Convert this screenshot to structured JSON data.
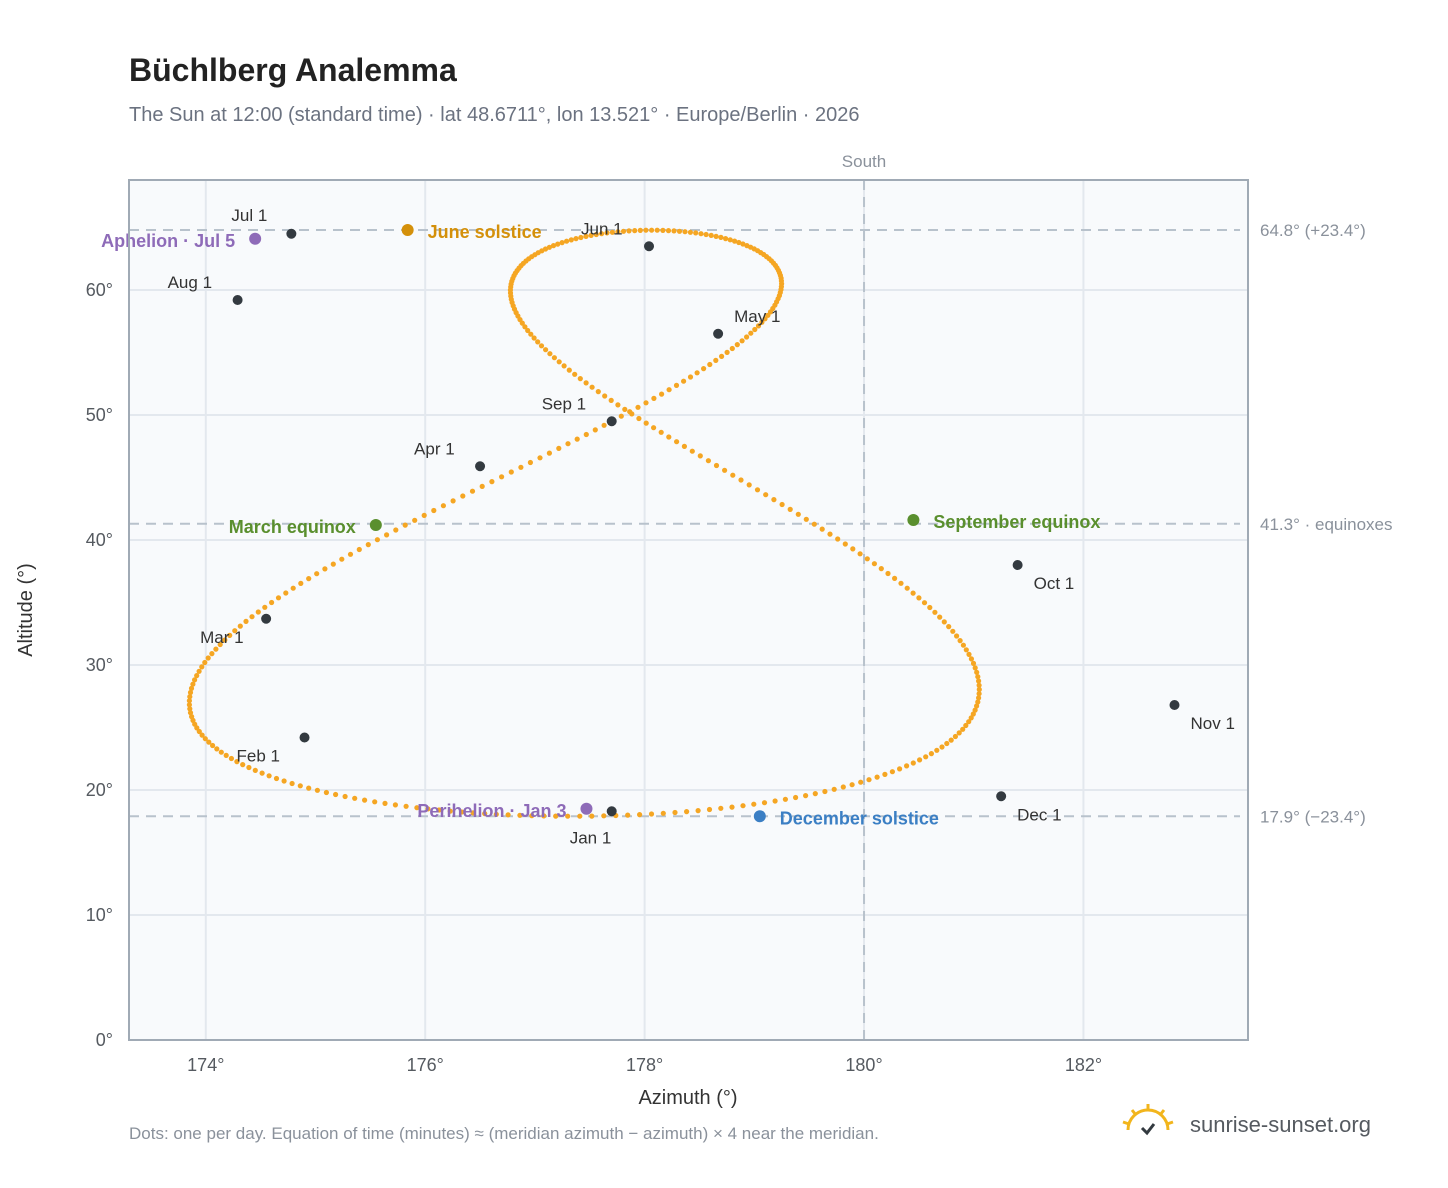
{
  "header": {
    "title": "Büchlberg Analemma",
    "subtitle": "The Sun at 12:00 (standard time) · lat 48.6711°, lon 13.521° · Europe/Berlin · 2026"
  },
  "footer": {
    "note": "Dots: one per day. Equation of time (minutes) ≈ (meridian azimuth − azimuth) × 4 near the meridian.",
    "brand": "sunrise-sunset.org"
  },
  "chart_data": {
    "type": "scatter",
    "title": "Büchlberg Analemma",
    "xlabel": "Azimuth (°)",
    "ylabel": "Altitude (°)",
    "xlim": [
      173.3,
      183.5
    ],
    "ylim": [
      0,
      68.8
    ],
    "x_ticks": [
      174,
      176,
      178,
      180,
      182
    ],
    "x_tick_labels": [
      "174°",
      "176°",
      "178°",
      "180°",
      "182°"
    ],
    "y_ticks": [
      0,
      10,
      20,
      30,
      40,
      50,
      60
    ],
    "y_tick_labels": [
      "0°",
      "10°",
      "20°",
      "30°",
      "40°",
      "50°",
      "60°"
    ],
    "grid": true,
    "colors": {
      "analemma": "#f5a623",
      "month_marker": "#333a40",
      "equinox": "#5a8f2e",
      "june_solstice": "#d4900a",
      "december_solstice": "#3b7fc4",
      "apsis": "#8e6bb8",
      "reference_line": "#b8c2cc",
      "plot_background": "#f8fafc"
    },
    "meridian": {
      "x": 180,
      "label": "South"
    },
    "reference_lines": [
      {
        "y": 64.8,
        "label": "64.8° (+23.4°)"
      },
      {
        "y": 41.3,
        "label": "41.3° · equinoxes"
      },
      {
        "y": 17.9,
        "label": "17.9° (−23.4°)"
      }
    ],
    "month_markers": [
      {
        "label": "Jan 1",
        "x": 177.7,
        "y": 18.3
      },
      {
        "label": "Feb 1",
        "x": 174.9,
        "y": 24.2
      },
      {
        "label": "Mar 1",
        "x": 174.55,
        "y": 33.7
      },
      {
        "label": "Apr 1",
        "x": 176.5,
        "y": 45.9
      },
      {
        "label": "May 1",
        "x": 178.67,
        "y": 56.5
      },
      {
        "label": "Jun 1",
        "x": 178.04,
        "y": 63.5
      },
      {
        "label": "Jul 1",
        "x": 174.78,
        "y": 64.5
      },
      {
        "label": "Aug 1",
        "x": 174.29,
        "y": 59.2
      },
      {
        "label": "Sep 1",
        "x": 177.7,
        "y": 49.5
      },
      {
        "label": "Oct 1",
        "x": 181.4,
        "y": 38.0
      },
      {
        "label": "Nov 1",
        "x": 182.83,
        "y": 26.8
      },
      {
        "label": "Dec 1",
        "x": 181.25,
        "y": 19.5
      }
    ],
    "events": [
      {
        "label": "March equinox",
        "x": 175.55,
        "y": 41.2,
        "color": "#5a8f2e"
      },
      {
        "label": "September equinox",
        "x": 180.45,
        "y": 41.6,
        "color": "#5a8f2e"
      },
      {
        "label": "June solstice",
        "x": 175.84,
        "y": 64.8,
        "color": "#d4900a"
      },
      {
        "label": "December solstice",
        "x": 179.05,
        "y": 17.9,
        "color": "#3b7fc4"
      },
      {
        "label": "Aphelion · Jul 5",
        "x": 174.45,
        "y": 64.1,
        "color": "#8e6bb8"
      },
      {
        "label": "Perihelion · Jan 3",
        "x": 177.47,
        "y": 18.5,
        "color": "#8e6bb8"
      }
    ]
  }
}
